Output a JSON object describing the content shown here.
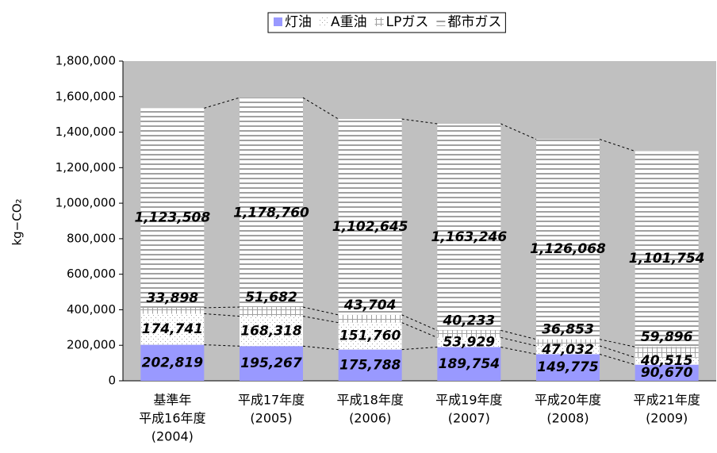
{
  "chart_data": {
    "type": "stacked_bar",
    "y_label": "kg−CO₂",
    "categories": [
      [
        "基準年",
        "平成16年度",
        "(2004)"
      ],
      [
        "平成17年度",
        "(2005)"
      ],
      [
        "平成18年度",
        "(2006)"
      ],
      [
        "平成19年度",
        "(2007)"
      ],
      [
        "平成20年度",
        "(2008)"
      ],
      [
        "平成21年度",
        "(2009)"
      ]
    ],
    "series": [
      {
        "name": "灯油",
        "color": "#9999ff",
        "values": [
          202819,
          195267,
          175788,
          189754,
          149775,
          90670
        ],
        "value_labels": [
          "202,819",
          "195,267",
          "175,788",
          "189,754",
          "149,775",
          "90,670"
        ]
      },
      {
        "name": "A重油",
        "color": "#a0a0a0",
        "values": [
          174741,
          168318,
          151760,
          53929,
          47032,
          40515
        ],
        "value_labels": [
          "174,741",
          "168,318",
          "151,760",
          "53,929",
          "47,032",
          "40,515"
        ]
      },
      {
        "name": "LPガス",
        "color": "#a0a0a0",
        "values": [
          33898,
          51682,
          43704,
          40233,
          36853,
          59896
        ],
        "value_labels": [
          "33,898",
          "51,682",
          "43,704",
          "40,233",
          "36,853",
          "59,896"
        ]
      },
      {
        "name": "都市ガス",
        "color": "#a0a0a0",
        "values": [
          1123508,
          1178760,
          1102645,
          1163246,
          1126068,
          1101754
        ],
        "value_labels": [
          "1,123,508",
          "1,178,760",
          "1,102,645",
          "1,163,246",
          "1,126,068",
          "1,101,754"
        ]
      }
    ],
    "ylim": [
      0,
      1800000
    ],
    "yticks": [
      0,
      {
        "value": 200000,
        "label": "200,000"
      },
      {
        "value": 400000,
        "label": "400,000"
      },
      {
        "value": 600000,
        "label": "600,000"
      },
      {
        "value": 800000,
        "label": "800,000"
      },
      {
        "value": 1000000,
        "label": "1,000,000"
      },
      {
        "value": 1200000,
        "label": "1,200,000"
      },
      {
        "value": 1400000,
        "label": "1,400,000"
      },
      {
        "value": 1600000,
        "label": "1,600,000"
      },
      {
        "value": 1800000,
        "label": "1,800,000"
      }
    ],
    "legend": "top"
  }
}
